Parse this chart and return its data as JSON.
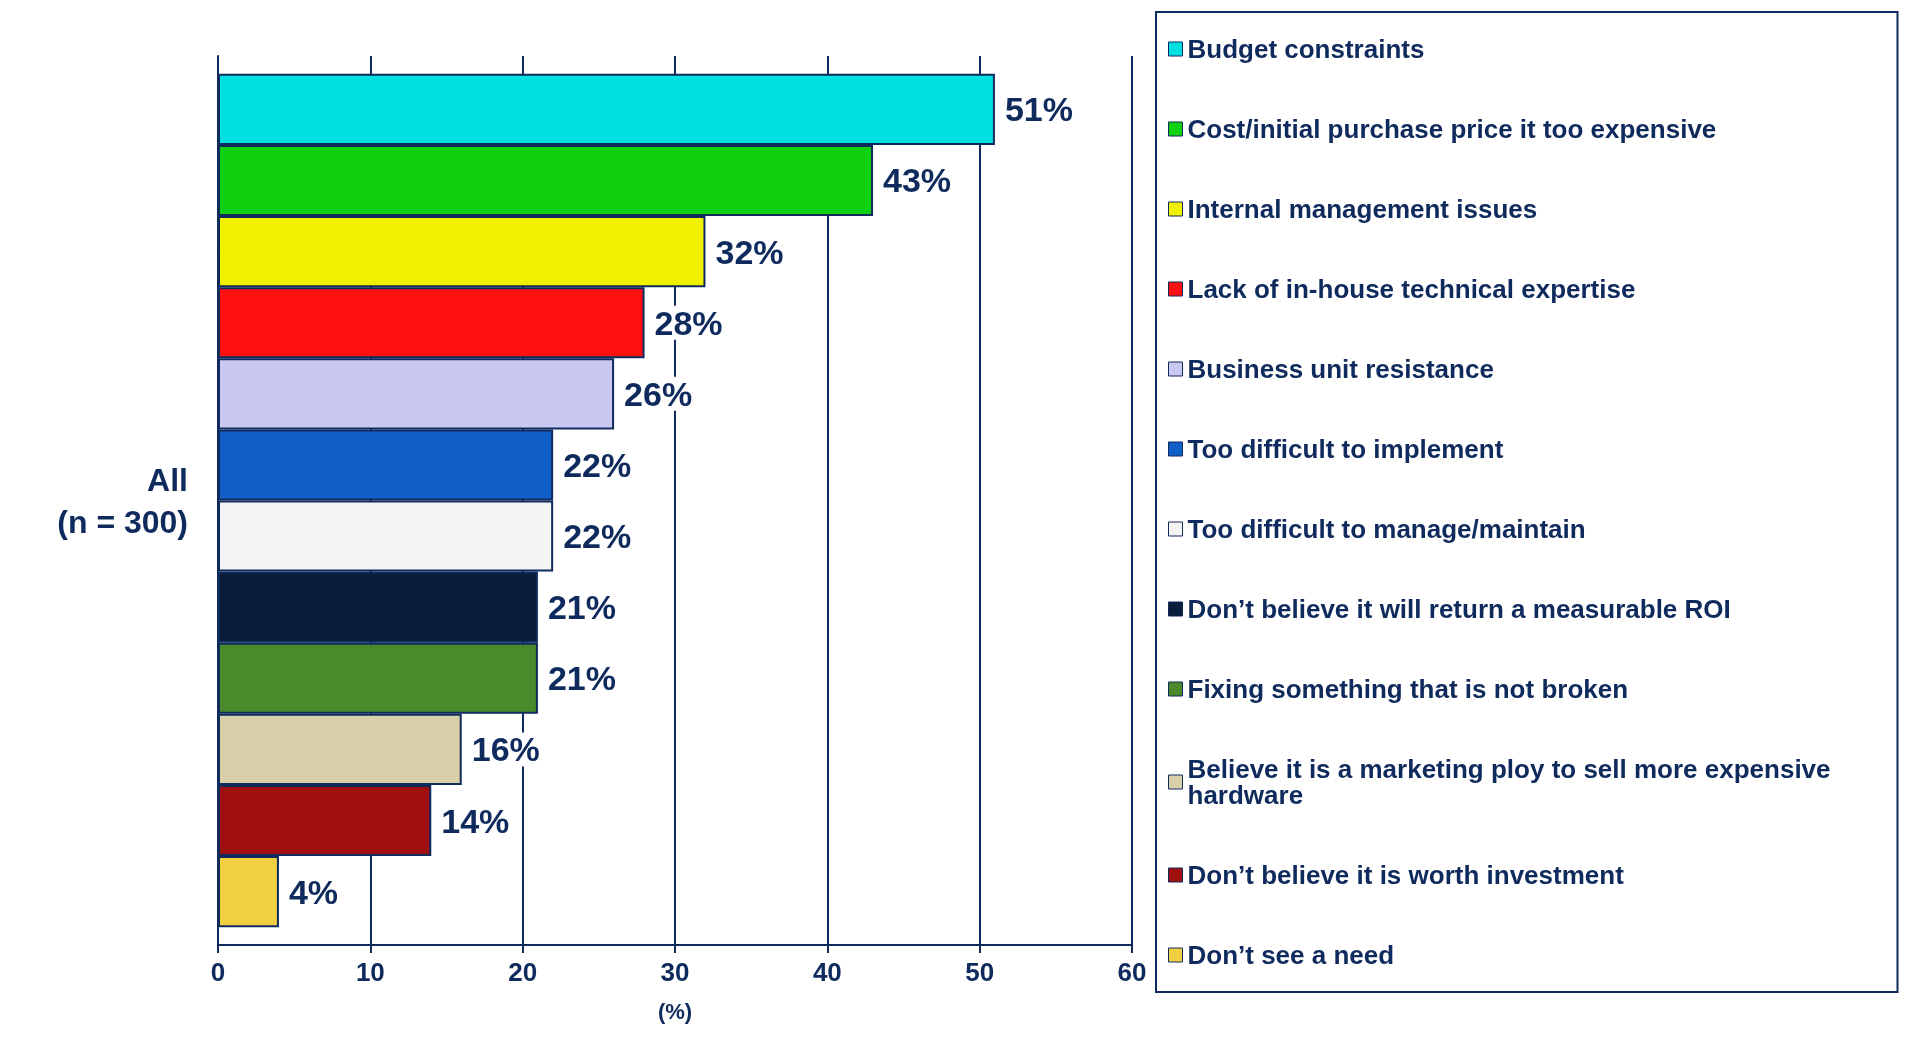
{
  "chart_data": {
    "type": "bar",
    "orientation": "horizontal",
    "categories": [
      "All\n(n = 300)"
    ],
    "xlabel": "(%)",
    "xlim": [
      0,
      60
    ],
    "xticks": [
      0,
      10,
      20,
      30,
      40,
      50,
      60
    ],
    "grid": "x",
    "legend": "right",
    "series": [
      {
        "name": "Budget constraints",
        "color": "#00e0e0",
        "values": [
          51
        ],
        "value_labels": [
          "51%"
        ]
      },
      {
        "name": "Cost/initial purchase price it too expensive",
        "color": "#10d010",
        "values": [
          43
        ],
        "value_labels": [
          "43%"
        ]
      },
      {
        "name": "Internal management issues",
        "color": "#f0f000",
        "values": [
          32
        ],
        "value_labels": [
          "32%"
        ]
      },
      {
        "name": "Lack of in-house technical expertise",
        "color": "#ff1010",
        "values": [
          28
        ],
        "value_labels": [
          "28%"
        ]
      },
      {
        "name": "Business unit resistance",
        "color": "#c8c8f0",
        "values": [
          26
        ],
        "value_labels": [
          "26%"
        ]
      },
      {
        "name": "Too difficult to implement",
        "color": "#1060c8",
        "values": [
          22
        ],
        "value_labels": [
          "22%"
        ]
      },
      {
        "name": "Too difficult to manage/maintain",
        "color": "#f4f4f4",
        "values": [
          22
        ],
        "value_labels": [
          "22%"
        ]
      },
      {
        "name": "Don’t believe it will return a measurable ROI",
        "color": "#0a1e3c",
        "values": [
          21
        ],
        "value_labels": [
          "21%"
        ]
      },
      {
        "name": "Fixing something that is not broken",
        "color": "#4a8a2a",
        "values": [
          21
        ],
        "value_labels": [
          "21%"
        ]
      },
      {
        "name": "Believe it is a marketing ploy to sell more expensive hardware",
        "color": "#d8d0a8",
        "values": [
          16
        ],
        "value_labels": [
          "16%"
        ]
      },
      {
        "name": "Don’t believe it is worth investment",
        "color": "#a01010",
        "values": [
          14
        ],
        "value_labels": [
          "14%"
        ]
      },
      {
        "name": "Don’t see a need",
        "color": "#f0d040",
        "values": [
          4
        ],
        "value_labels": [
          "4%"
        ]
      }
    ]
  }
}
